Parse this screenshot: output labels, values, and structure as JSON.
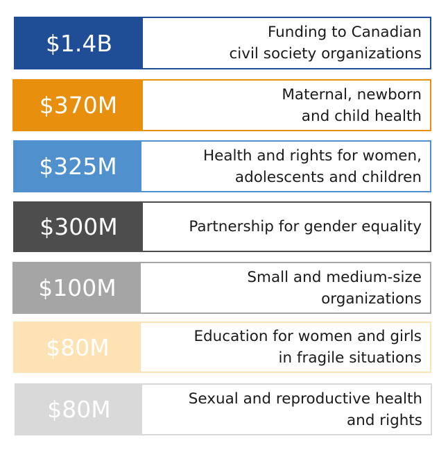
{
  "rows": [
    {
      "amount": "$1.4B",
      "description": "Funding to Canadian\ncivil society organizations",
      "color": "#1f4e96"
    },
    {
      "amount": "$370M",
      "description": "Maternal, newborn\nand child health",
      "color": "#e8900e"
    },
    {
      "amount": "$325M",
      "description": "Health and rights for women,\nadolescents and children",
      "color": "#4f90cd"
    },
    {
      "amount": "$300M",
      "description": "Partnership for gender equality",
      "color": "#4d4d4d"
    },
    {
      "amount": "$100M",
      "description": "Small and medium-size\norganizations",
      "color": "#a5a5a5"
    },
    {
      "amount": "$80M",
      "description": "Education for women and girls\nin fragile situations",
      "color": "#fde3b3"
    },
    {
      "amount": "$80M",
      "description": "Sexual and reproductive health\nand rights",
      "color": "#d9d9d9"
    }
  ]
}
